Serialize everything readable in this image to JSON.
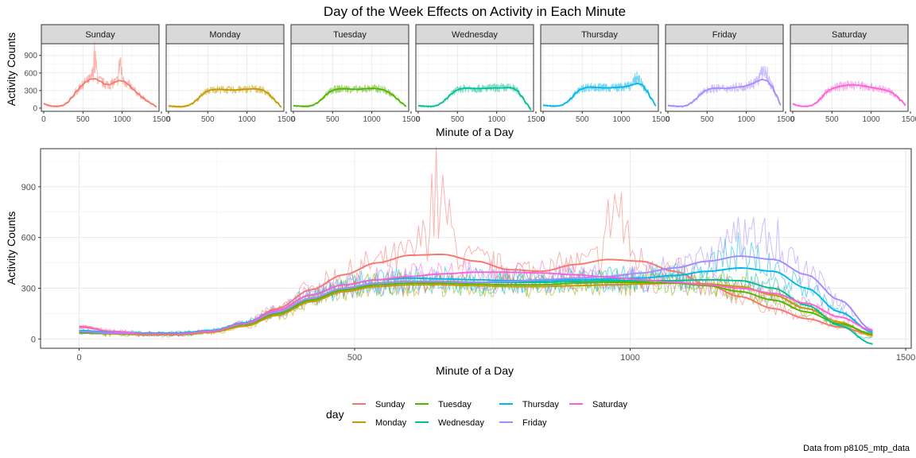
{
  "title": "Day of the Week Effects on Activity in Each Minute",
  "caption": "Data from p8105_mtp_data",
  "chart_data": [
    {
      "type": "line",
      "panel": "small-multiples",
      "title": "Day of the Week Effects on Activity in Each Minute",
      "xlabel": "Minute of a Day",
      "ylabel": "Activity Counts",
      "xlim": [
        0,
        1440
      ],
      "ylim": [
        0,
        1100
      ],
      "x_ticks": [
        0,
        500,
        1000,
        1500
      ],
      "x_tick_labels": [
        "0",
        "500",
        "1000",
        "1500"
      ],
      "y_ticks": [
        0,
        300,
        600,
        900
      ],
      "facets": [
        "Sunday",
        "Monday",
        "Tuesday",
        "Wednesday",
        "Thursday",
        "Friday",
        "Saturday"
      ],
      "grid": true,
      "x": [
        0,
        60,
        120,
        180,
        240,
        300,
        360,
        420,
        480,
        540,
        600,
        660,
        720,
        780,
        840,
        900,
        960,
        1020,
        1080,
        1140,
        1200,
        1260,
        1320,
        1380,
        1440
      ],
      "series": [
        {
          "name": "Sunday",
          "color": "#F8766D",
          "values": [
            75,
            45,
            30,
            30,
            45,
            90,
            180,
            290,
            380,
            450,
            495,
            500,
            460,
            410,
            400,
            440,
            470,
            460,
            400,
            320,
            250,
            180,
            120,
            70,
            25
          ]
        },
        {
          "name": "Monday",
          "color": "#C49A00",
          "values": [
            35,
            30,
            25,
            25,
            40,
            75,
            140,
            220,
            280,
            310,
            320,
            320,
            315,
            310,
            310,
            315,
            320,
            325,
            330,
            325,
            310,
            260,
            180,
            100,
            20
          ]
        },
        {
          "name": "Tuesday",
          "color": "#53B400",
          "values": [
            40,
            35,
            30,
            30,
            45,
            85,
            150,
            230,
            290,
            320,
            330,
            330,
            325,
            320,
            320,
            330,
            335,
            335,
            330,
            315,
            280,
            230,
            160,
            90,
            30
          ]
        },
        {
          "name": "Wednesday",
          "color": "#00C094",
          "values": [
            40,
            35,
            30,
            30,
            45,
            90,
            160,
            240,
            300,
            330,
            340,
            340,
            335,
            335,
            335,
            340,
            345,
            345,
            345,
            350,
            345,
            300,
            200,
            80,
            -30
          ]
        },
        {
          "name": "Thursday",
          "color": "#00B6EB",
          "values": [
            50,
            40,
            35,
            35,
            50,
            95,
            170,
            260,
            320,
            350,
            360,
            355,
            350,
            345,
            345,
            350,
            355,
            360,
            375,
            400,
            420,
            400,
            300,
            160,
            40
          ]
        },
        {
          "name": "Friday",
          "color": "#A58AFF",
          "values": [
            45,
            35,
            30,
            30,
            45,
            90,
            160,
            240,
            300,
            330,
            340,
            340,
            335,
            340,
            350,
            360,
            370,
            390,
            420,
            460,
            490,
            470,
            380,
            230,
            50
          ]
        },
        {
          "name": "Saturday",
          "color": "#FB61D7",
          "values": [
            70,
            45,
            30,
            30,
            45,
            90,
            170,
            260,
            320,
            350,
            370,
            385,
            395,
            395,
            390,
            380,
            365,
            350,
            335,
            320,
            300,
            270,
            210,
            130,
            50
          ]
        }
      ]
    },
    {
      "type": "line",
      "panel": "overlay",
      "xlabel": "Minute of a Day",
      "ylabel": "Activity Counts",
      "xlim": [
        -70,
        1510
      ],
      "ylim": [
        -55,
        1125
      ],
      "x_ticks": [
        0,
        500,
        1000,
        1500
      ],
      "x_tick_labels": [
        "0",
        "500",
        "1000",
        "1500"
      ],
      "y_ticks": [
        0,
        300,
        600,
        900
      ],
      "grid": true,
      "legend": {
        "title": "day",
        "position": "bottom"
      }
    }
  ]
}
